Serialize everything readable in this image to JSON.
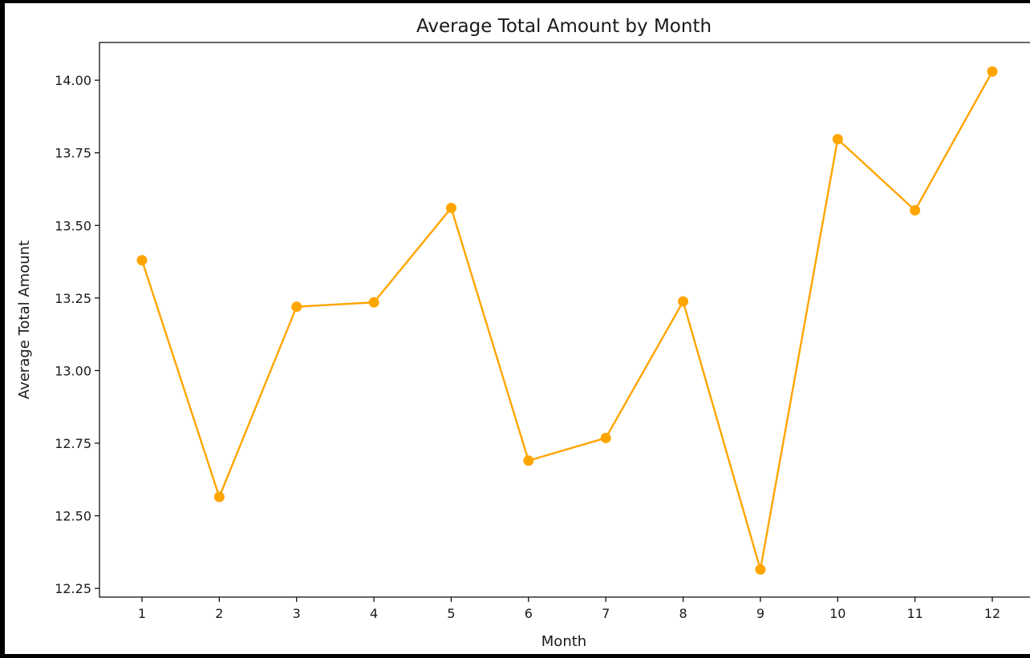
{
  "chart_data": {
    "type": "line",
    "title": "Average Total Amount by Month",
    "xlabel": "Month",
    "ylabel": "Average Total Amount",
    "x": [
      1,
      2,
      3,
      4,
      5,
      6,
      7,
      8,
      9,
      10,
      11,
      12
    ],
    "series": [
      {
        "values": [
          13.38,
          12.565,
          13.22,
          13.235,
          13.56,
          12.69,
          12.768,
          13.238,
          12.315,
          13.797,
          13.552,
          14.03
        ],
        "color": "#ffa500",
        "marker": "circle"
      }
    ],
    "xticks": [
      "1",
      "2",
      "3",
      "4",
      "5",
      "6",
      "7",
      "8",
      "9",
      "10",
      "11",
      "12"
    ],
    "yticks": [
      "12.25",
      "12.50",
      "12.75",
      "13.00",
      "13.25",
      "13.50",
      "13.75",
      "14.00"
    ],
    "ylim": [
      12.22,
      14.13
    ],
    "xlim": [
      0.45,
      12.55
    ],
    "grid": false,
    "legend": "none"
  }
}
